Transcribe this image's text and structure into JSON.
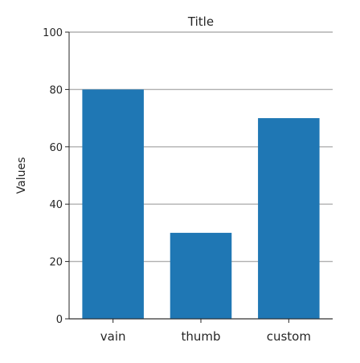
{
  "chart_data": {
    "type": "bar",
    "title": "Title",
    "xlabel": "",
    "ylabel": "Values",
    "categories": [
      "vain",
      "thumb",
      "custom"
    ],
    "values": [
      80,
      30,
      70
    ],
    "ylim": [
      0,
      100
    ],
    "yticks": [
      0,
      20,
      40,
      60,
      80,
      100
    ],
    "grid": true,
    "bar_color": "#1f77b4",
    "grid_color": "#b0b0b0"
  }
}
